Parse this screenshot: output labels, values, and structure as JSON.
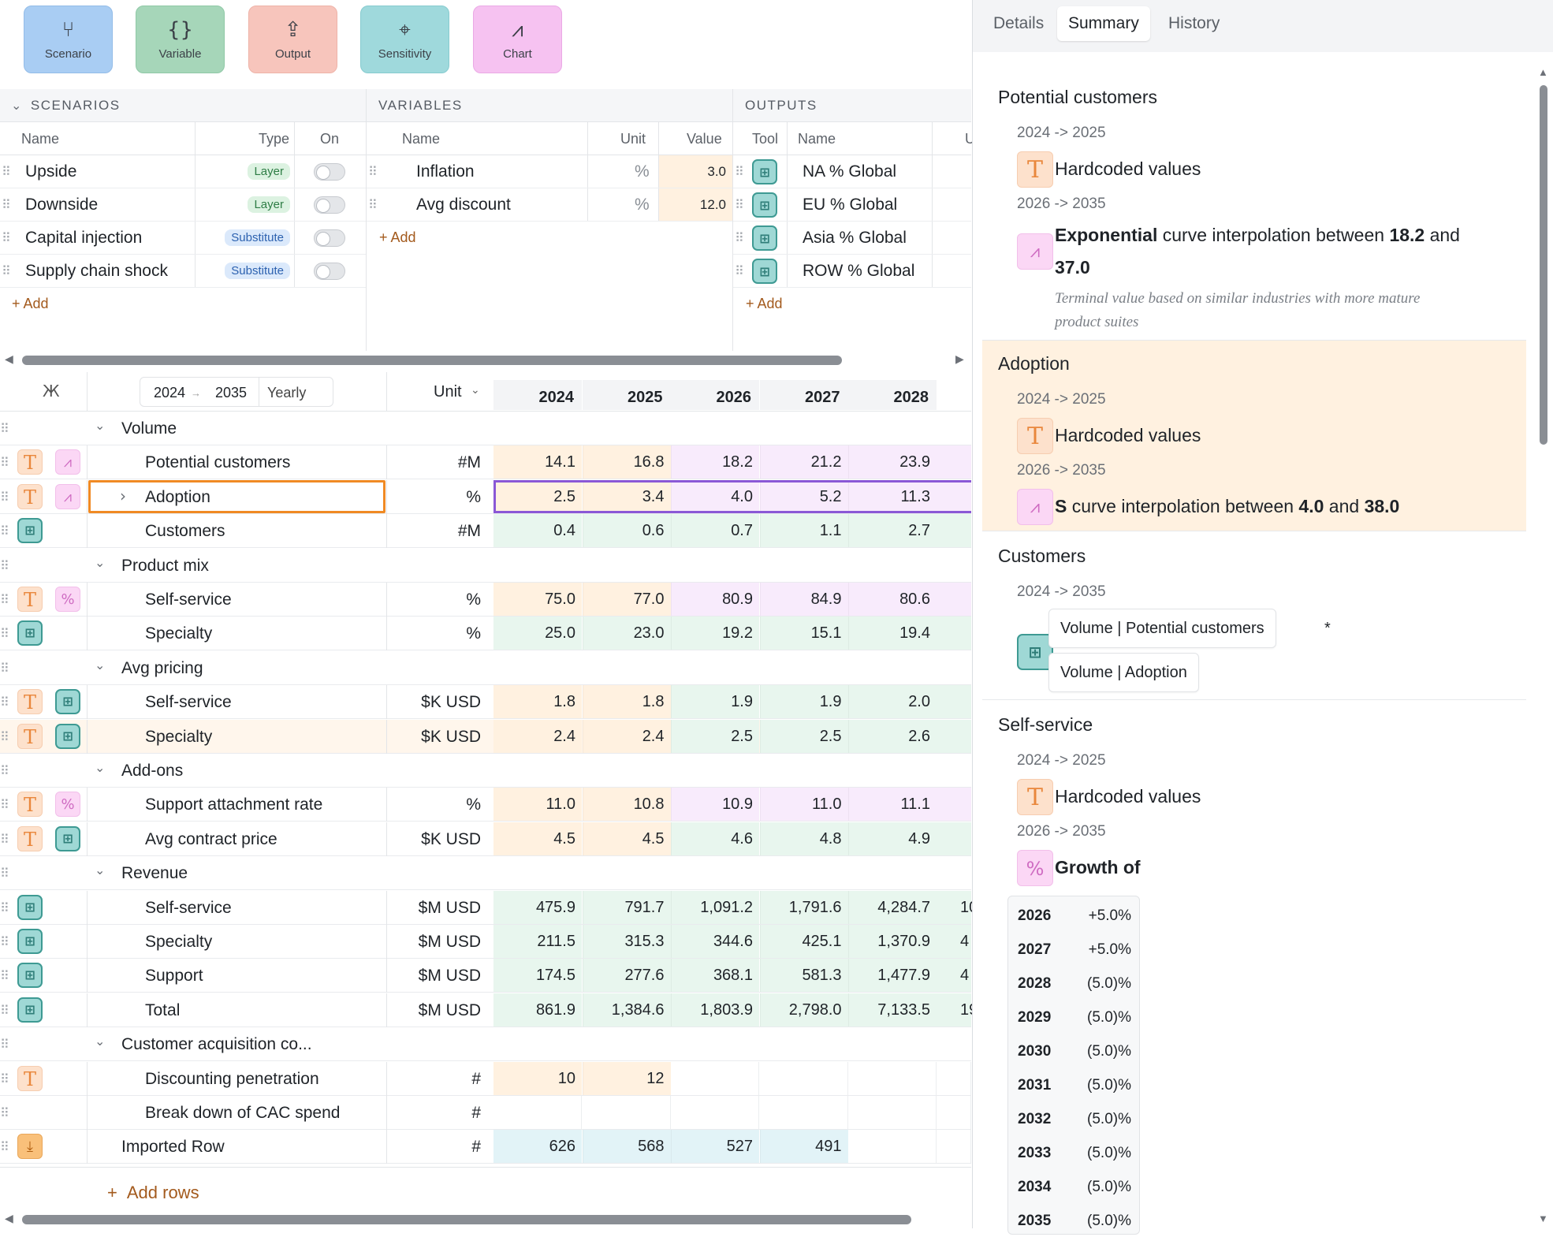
{
  "toolbar": {
    "scenario": "Scenario",
    "variable": "Variable",
    "output": "Output",
    "sensitivity": "Sensitivity",
    "chart": "Chart"
  },
  "scenarios": {
    "title": "SCENARIOS",
    "col_name": "Name",
    "col_type": "Type",
    "col_on": "On",
    "rows": [
      {
        "name": "Upside",
        "type": "Layer"
      },
      {
        "name": "Downside",
        "type": "Layer"
      },
      {
        "name": "Capital injection",
        "type": "Substitute"
      },
      {
        "name": "Supply chain shock",
        "type": "Substitute"
      }
    ],
    "add": "+ Add"
  },
  "variables": {
    "title": "VARIABLES",
    "col_name": "Name",
    "col_unit": "Unit",
    "col_value": "Value",
    "rows": [
      {
        "name": "Inflation",
        "unit": "%",
        "value": "3.0"
      },
      {
        "name": "Avg discount",
        "unit": "%",
        "value": "12.0"
      }
    ],
    "add": "+ Add"
  },
  "outputs": {
    "title": "OUTPUTS",
    "col_tool": "Tool",
    "col_name": "Name",
    "col_u": "U",
    "rows": [
      {
        "name": "NA % Global"
      },
      {
        "name": "EU % Global"
      },
      {
        "name": "Asia % Global"
      },
      {
        "name": "ROW % Global"
      }
    ],
    "add": "+ Add"
  },
  "grid": {
    "range_start": "2024",
    "range_arrow": "→",
    "range_end": "2035",
    "range_freq": "Yearly",
    "unit_label": "Unit",
    "years": [
      "2024",
      "2025",
      "2026",
      "2027",
      "2028"
    ],
    "add_rows": "Add rows",
    "rows": [
      {
        "kind": "group",
        "label": "Volume"
      },
      {
        "kind": "row",
        "label": "Potential customers",
        "unit": "#M",
        "icons": [
          "T",
          "curve"
        ],
        "values": [
          "14.1",
          "16.8",
          "18.2",
          "21.2",
          "23.9"
        ],
        "types": [
          "hard",
          "hard",
          "curve",
          "curve",
          "curve"
        ]
      },
      {
        "kind": "row",
        "label": "Adoption",
        "unit": "%",
        "icons": [
          "T",
          "curve"
        ],
        "values": [
          "2.5",
          "3.4",
          "4.0",
          "5.2",
          "11.3"
        ],
        "types": [
          "hard",
          "hard",
          "curve",
          "curve",
          "curve"
        ],
        "selected": true
      },
      {
        "kind": "row",
        "label": "Customers",
        "unit": "#M",
        "icons": [
          "calc"
        ],
        "values": [
          "0.4",
          "0.6",
          "0.7",
          "1.1",
          "2.7"
        ],
        "types": [
          "calc",
          "calc",
          "calc",
          "calc",
          "calc"
        ]
      },
      {
        "kind": "group",
        "label": "Product mix"
      },
      {
        "kind": "row",
        "label": "Self-service",
        "unit": "%",
        "icons": [
          "T",
          "pct"
        ],
        "values": [
          "75.0",
          "77.0",
          "80.9",
          "84.9",
          "80.6"
        ],
        "types": [
          "hard",
          "hard",
          "curve",
          "curve",
          "curve"
        ]
      },
      {
        "kind": "row",
        "label": "Specialty",
        "unit": "%",
        "icons": [
          "calc"
        ],
        "values": [
          "25.0",
          "23.0",
          "19.2",
          "15.1",
          "19.4"
        ],
        "types": [
          "calc",
          "calc",
          "calc",
          "calc",
          "calc"
        ]
      },
      {
        "kind": "group",
        "label": "Avg pricing"
      },
      {
        "kind": "row",
        "label": "Self-service",
        "unit": "$K USD",
        "icons": [
          "T",
          "calc"
        ],
        "values": [
          "1.8",
          "1.8",
          "1.9",
          "1.9",
          "2.0"
        ],
        "types": [
          "hard",
          "hard",
          "calc",
          "calc",
          "calc"
        ]
      },
      {
        "kind": "row",
        "label": "Specialty",
        "unit": "$K USD",
        "icons": [
          "T",
          "calc"
        ],
        "values": [
          "2.4",
          "2.4",
          "2.5",
          "2.5",
          "2.6"
        ],
        "types": [
          "hard",
          "hard",
          "calc",
          "calc",
          "calc"
        ],
        "hover": true
      },
      {
        "kind": "group",
        "label": "Add-ons"
      },
      {
        "kind": "row",
        "label": "Support attachment rate",
        "unit": "%",
        "icons": [
          "T",
          "pct"
        ],
        "values": [
          "11.0",
          "10.8",
          "10.9",
          "11.0",
          "11.1"
        ],
        "types": [
          "hard",
          "hard",
          "curve",
          "curve",
          "curve"
        ]
      },
      {
        "kind": "row",
        "label": "Avg contract price",
        "unit": "$K USD",
        "icons": [
          "T",
          "calc"
        ],
        "values": [
          "4.5",
          "4.5",
          "4.6",
          "4.8",
          "4.9"
        ],
        "types": [
          "hard",
          "hard",
          "calc",
          "calc",
          "calc"
        ]
      },
      {
        "kind": "group",
        "label": "Revenue"
      },
      {
        "kind": "row",
        "label": "Self-service",
        "unit": "$M USD",
        "icons": [
          "calc"
        ],
        "values": [
          "475.9",
          "791.7",
          "1,091.2",
          "1,791.6",
          "4,284.7"
        ],
        "types": [
          "calc",
          "calc",
          "calc",
          "calc",
          "calc"
        ],
        "overflow": "10"
      },
      {
        "kind": "row",
        "label": "Specialty",
        "unit": "$M USD",
        "icons": [
          "calc"
        ],
        "values": [
          "211.5",
          "315.3",
          "344.6",
          "425.1",
          "1,370.9"
        ],
        "types": [
          "calc",
          "calc",
          "calc",
          "calc",
          "calc"
        ],
        "overflow": "4"
      },
      {
        "kind": "row",
        "label": "Support",
        "unit": "$M USD",
        "icons": [
          "calc"
        ],
        "values": [
          "174.5",
          "277.6",
          "368.1",
          "581.3",
          "1,477.9"
        ],
        "types": [
          "calc",
          "calc",
          "calc",
          "calc",
          "calc"
        ],
        "overflow": "4"
      },
      {
        "kind": "row",
        "label": "Total",
        "unit": "$M USD",
        "icons": [
          "calc"
        ],
        "values": [
          "861.9",
          "1,384.6",
          "1,803.9",
          "2,798.0",
          "7,133.5"
        ],
        "types": [
          "calc",
          "calc",
          "calc",
          "calc",
          "calc"
        ],
        "overflow": "19"
      },
      {
        "kind": "group",
        "label": "Customer acquisition co..."
      },
      {
        "kind": "row",
        "label": "Discounting penetration",
        "unit": "#",
        "icons": [
          "T"
        ],
        "values": [
          "10",
          "12",
          "",
          "",
          ""
        ],
        "types": [
          "hard",
          "hard",
          "none",
          "none",
          "none"
        ]
      },
      {
        "kind": "row",
        "label": "Break down of CAC spend",
        "unit": "#",
        "icons": [],
        "values": [
          "",
          "",
          "",
          "",
          ""
        ],
        "types": [
          "none",
          "none",
          "none",
          "none",
          "none"
        ]
      },
      {
        "kind": "toprow",
        "label": "Imported Row",
        "unit": "#",
        "icons": [
          "import"
        ],
        "values": [
          "626",
          "568",
          "527",
          "491",
          ""
        ],
        "types": [
          "imp",
          "imp",
          "imp",
          "imp",
          "none"
        ]
      }
    ]
  },
  "panel": {
    "tabs": [
      "Details",
      "Summary",
      "History"
    ],
    "active_tab": "Summary",
    "potential": {
      "title": "Potential customers",
      "p1": "2024 -> 2025",
      "d1": "Hardcoded values",
      "p2": "2026 -> 2035",
      "d2_bold1": "Exponential",
      "d2_mid": " curve interpolation between ",
      "d2_bold2": "18.2",
      "d2_and": " and",
      "d2_bold3": "37.0",
      "note": "Terminal value based on similar industries with more mature product suites"
    },
    "adoption": {
      "title": "Adoption",
      "p1": "2024 -> 2025",
      "d1": "Hardcoded values",
      "p2": "2026 -> 2035",
      "d2_bold1": "S",
      "d2_mid": " curve interpolation between ",
      "d2_bold2": "4.0",
      "d2_and": " and ",
      "d2_bold3": "38.0"
    },
    "customers": {
      "title": "Customers",
      "p1": "2024 -> 2035",
      "chip1": "Volume | Potential customers",
      "chip2": "Volume | Adoption",
      "star": "*"
    },
    "selfservice": {
      "title": "Self-service",
      "p1": "2024 -> 2025",
      "d1": "Hardcoded values",
      "p2": "2026 -> 2035",
      "d2": "Growth of",
      "growth": [
        {
          "year": "2026",
          "value": "+5.0%"
        },
        {
          "year": "2027",
          "value": "+5.0%"
        },
        {
          "year": "2028",
          "value": "(5.0)%"
        },
        {
          "year": "2029",
          "value": "(5.0)%"
        },
        {
          "year": "2030",
          "value": "(5.0)%"
        },
        {
          "year": "2031",
          "value": "(5.0)%"
        },
        {
          "year": "2032",
          "value": "(5.0)%"
        },
        {
          "year": "2033",
          "value": "(5.0)%"
        },
        {
          "year": "2034",
          "value": "(5.0)%"
        },
        {
          "year": "2035",
          "value": "(5.0)%"
        }
      ]
    }
  }
}
